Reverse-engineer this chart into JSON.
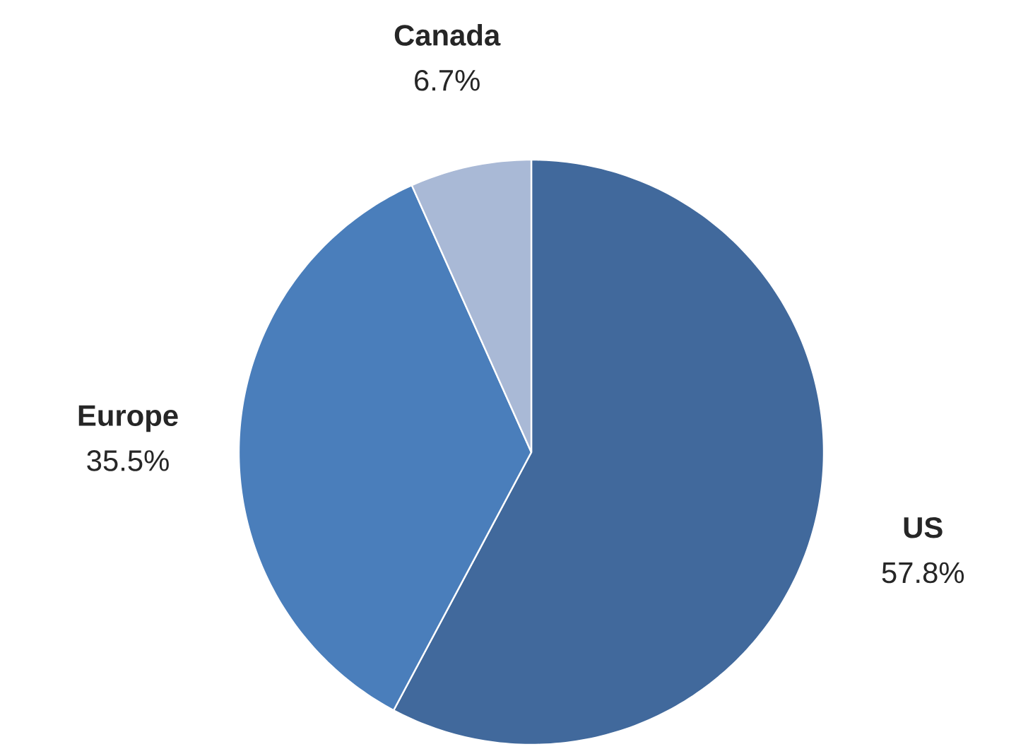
{
  "chart_data": {
    "type": "pie",
    "categories": [
      "US",
      "Europe",
      "Canada"
    ],
    "values": [
      57.8,
      35.5,
      6.7
    ],
    "value_labels": [
      "57.8%",
      "35.5%",
      "6.7%"
    ],
    "colors": [
      "#41699c",
      "#4a7ebb",
      "#a9b9d6"
    ]
  }
}
